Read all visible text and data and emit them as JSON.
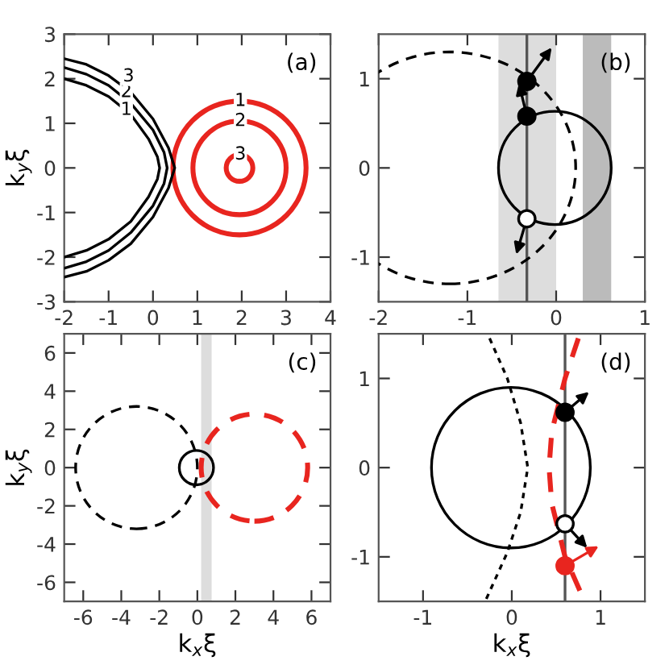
{
  "chart_data": [
    {
      "type": "line",
      "title": "(a)",
      "ylabel": "k$_{y}$ξ",
      "xlim": [
        -2,
        4
      ],
      "ylim": [
        -3,
        3
      ],
      "xticks": [
        -2,
        -1,
        0,
        1,
        2,
        3,
        4
      ],
      "yticks": [
        -3,
        -2,
        -1,
        0,
        1,
        2,
        3
      ],
      "series": [
        {
          "color": "#000000",
          "line_style": "solid",
          "x": [
            -2,
            -1.5,
            -1,
            -0.5,
            -0.1,
            0.1,
            0.15,
            0.1,
            -0.1,
            -0.5,
            -1,
            -1.5,
            -2
          ],
          "values": [
            2.0,
            1.85,
            1.6,
            1.2,
            0.65,
            0.25,
            0,
            -0.25,
            -0.65,
            -1.2,
            -1.6,
            -1.85,
            -2.0
          ]
        },
        {
          "color": "#000000",
          "line_style": "solid",
          "x": [
            -2,
            -1.5,
            -1,
            -0.5,
            0,
            0.25,
            0.32,
            0.25,
            0,
            -0.5,
            -1,
            -1.5,
            -2
          ],
          "values": [
            2.25,
            2.1,
            1.85,
            1.45,
            0.85,
            0.35,
            0,
            -0.35,
            -0.85,
            -1.45,
            -1.85,
            -2.1,
            -2.25
          ]
        },
        {
          "color": "#000000",
          "line_style": "solid",
          "x": [
            -2,
            -1.5,
            -1,
            -0.5,
            0,
            0.35,
            0.49,
            0.35,
            0,
            -0.5,
            -1,
            -1.5,
            -2
          ],
          "values": [
            2.45,
            2.32,
            2.07,
            1.7,
            1.1,
            0.45,
            0,
            -0.45,
            -1.1,
            -1.7,
            -2.07,
            -2.32,
            -2.45
          ]
        }
      ],
      "annotations": [
        {
          "text": "1",
          "x": -0.6,
          "y": 1.3
        },
        {
          "text": "2",
          "x": -0.6,
          "y": 1.7
        },
        {
          "text": "3",
          "x": -0.55,
          "y": 2.05
        },
        {
          "text": "1",
          "x": 1.97,
          "y": 1.5
        },
        {
          "text": "2",
          "x": 1.97,
          "y": 1.05
        },
        {
          "text": "3",
          "x": 1.97,
          "y": 0.3
        }
      ]
    },
    {
      "type": "scatter",
      "title": "(b)",
      "xlim": [
        -2,
        1
      ],
      "ylim": [
        -1.5,
        1.5
      ],
      "xticks": [
        -2,
        -1,
        0,
        1
      ],
      "yticks": [
        -1,
        0,
        1
      ],
      "bands": [
        {
          "axis": "x",
          "from": -0.65,
          "to": 0.0,
          "color": "#dddddd"
        },
        {
          "axis": "x",
          "from": 0.3,
          "to": 0.62,
          "color": "#bbbbbb"
        }
      ],
      "ref_lines": [
        {
          "axis": "x",
          "value": -0.33,
          "color": "#555555"
        }
      ],
      "series": [
        {
          "marker": "circle",
          "color": "#000000",
          "x": [
            -0.33,
            -0.33
          ],
          "values": [
            0.97,
            0.58
          ]
        },
        {
          "marker": "circle",
          "color": "#ffffff",
          "x": [
            -0.33
          ],
          "values": [
            -0.57
          ]
        }
      ]
    },
    {
      "type": "line",
      "title": "(c)",
      "xlabel": "k$_{x}$ξ",
      "ylabel": "k$_{y}$ξ",
      "xlim": [
        -7,
        7
      ],
      "ylim": [
        -7,
        7
      ],
      "xticks": [
        -6,
        -4,
        -2,
        0,
        2,
        4,
        6
      ],
      "yticks": [
        -6,
        -4,
        -2,
        0,
        2,
        4,
        6
      ],
      "bands": [
        {
          "axis": "x",
          "from": 0.2,
          "to": 0.75,
          "color": "#dddddd"
        }
      ]
    },
    {
      "type": "line",
      "title": "(d)",
      "xlabel": "k$_{x}$ξ",
      "xlim": [
        -1.5,
        1.5
      ],
      "ylim": [
        -1.5,
        1.5
      ],
      "xticks": [
        -1,
        0,
        1
      ],
      "yticks": [
        -1,
        0,
        1
      ],
      "ref_lines": [
        {
          "axis": "x",
          "value": 0.6,
          "color": "#555555"
        }
      ],
      "series": [
        {
          "color": "#000000",
          "line_style": "dotted",
          "x": [
            -0.25,
            -0.05,
            0.1,
            0.18,
            0.1,
            -0.05,
            -0.3
          ],
          "values": [
            1.45,
            1.0,
            0.5,
            0,
            -0.5,
            -0.95,
            -1.5
          ]
        },
        {
          "color": "#e8251f",
          "line_style": "dashed",
          "x": [
            0.75,
            0.6,
            0.45,
            0.42,
            0.45,
            0.6,
            0.82
          ],
          "values": [
            1.45,
            1.0,
            0.4,
            0,
            -0.4,
            -1.0,
            -1.5
          ]
        },
        {
          "type": "scatter",
          "marker": "circle",
          "color": "#000000",
          "x": [
            0.6
          ],
          "values": [
            0.62
          ]
        },
        {
          "type": "scatter",
          "marker": "circle",
          "color": "#ffffff",
          "x": [
            0.6
          ],
          "values": [
            -0.63
          ]
        },
        {
          "type": "scatter",
          "marker": "circle",
          "color": "#e8251f",
          "x": [
            0.6
          ],
          "values": [
            -1.1
          ]
        }
      ]
    }
  ]
}
